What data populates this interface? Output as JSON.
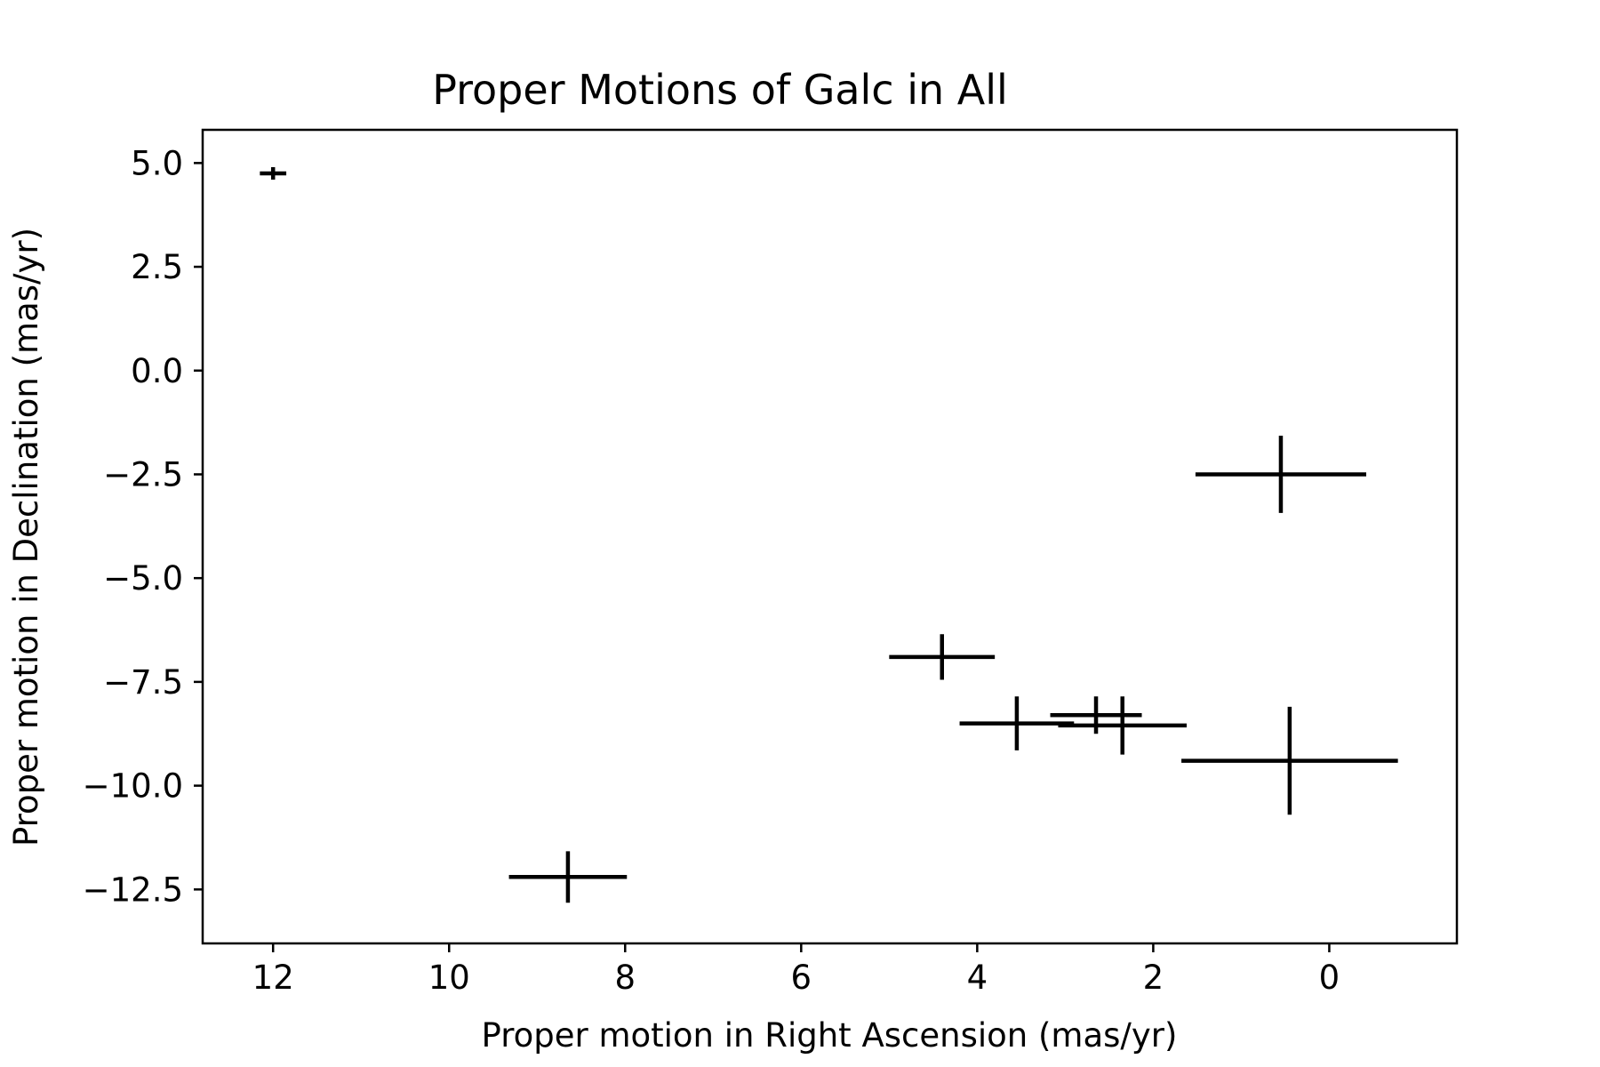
{
  "chart_data": {
    "type": "scatter",
    "title": "Proper Motions of Galc in All",
    "xlabel": "Proper motion in Right Ascension (mas/yr)",
    "ylabel": "Proper motion in Declination (mas/yr)",
    "xlim": [
      12.8,
      -1.45
    ],
    "ylim": [
      -13.8,
      5.8
    ],
    "x_inverted": true,
    "xticks": [
      12,
      10,
      8,
      6,
      4,
      2,
      0
    ],
    "xtick_labels": [
      "12",
      "10",
      "8",
      "6",
      "4",
      "2",
      "0"
    ],
    "yticks": [
      5.0,
      2.5,
      0.0,
      -2.5,
      -5.0,
      -7.5,
      -10.0,
      -12.5
    ],
    "ytick_labels": [
      "5.0",
      "2.5",
      "0.0",
      "−2.5",
      "−5.0",
      "−7.5",
      "−10.0",
      "−12.5"
    ],
    "grid": false,
    "legend": false,
    "marker_color": "#000000",
    "points": [
      {
        "x": 12.0,
        "y": 4.75,
        "xerr": 0.15,
        "yerr": 0.15
      },
      {
        "x": 8.65,
        "y": -12.2,
        "xerr": 0.67,
        "yerr": 0.62
      },
      {
        "x": 4.4,
        "y": -6.9,
        "xerr": 0.6,
        "yerr": 0.55
      },
      {
        "x": 3.55,
        "y": -8.5,
        "xerr": 0.65,
        "yerr": 0.65
      },
      {
        "x": 2.65,
        "y": -8.3,
        "xerr": 0.52,
        "yerr": 0.45
      },
      {
        "x": 2.35,
        "y": -8.55,
        "xerr": 0.73,
        "yerr": 0.7
      },
      {
        "x": 0.55,
        "y": -2.5,
        "xerr": 0.97,
        "yerr": 0.93
      },
      {
        "x": 0.45,
        "y": -9.4,
        "xerr": 1.23,
        "yerr": 1.3
      }
    ]
  }
}
